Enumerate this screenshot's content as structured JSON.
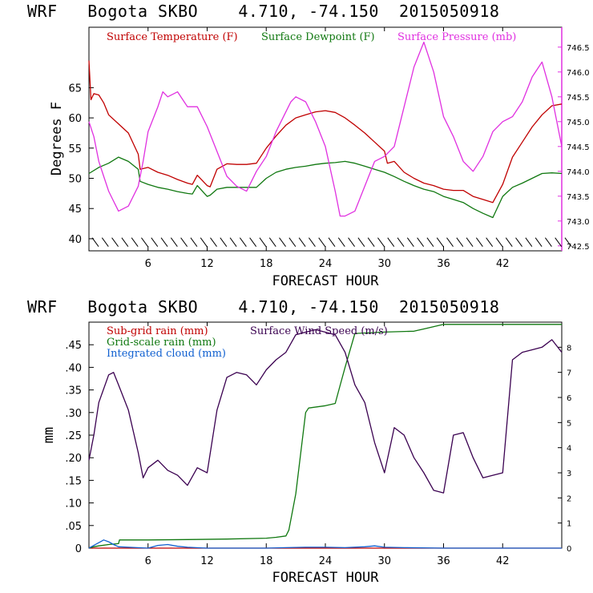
{
  "chart_data": [
    {
      "type": "line",
      "title": "WRF   Bogota SKBO    4.710, -74.150  2015050918",
      "xlabel": "FORECAST HOUR",
      "ylabel": "Degrees F",
      "xlim": [
        0,
        48
      ],
      "ylim": [
        38,
        75
      ],
      "y2lim": [
        742.4,
        746.9
      ],
      "xticks": [
        6,
        12,
        18,
        24,
        30,
        36,
        42
      ],
      "xtick_labels": [
        "6",
        "12",
        "18",
        "24",
        "30",
        "36",
        "42"
      ],
      "yticks": [
        40,
        45,
        50,
        55,
        60,
        65
      ],
      "ytick_labels": [
        "40",
        "45",
        "50",
        "55",
        "60",
        "65"
      ],
      "y2ticks": [
        742.5,
        743.0,
        743.5,
        744.0,
        744.5,
        745.0,
        745.5,
        746.0,
        746.5
      ],
      "y2tick_labels": [
        "742.5",
        "743.0",
        "743.5",
        "744.0",
        "744.5",
        "745.0",
        "745.5",
        "746.0",
        "746.5"
      ],
      "wind_barb_row_value": 39.5,
      "series": [
        {
          "name": "Surface Temperature (F)",
          "axis": "left",
          "color": "#c00000",
          "x": [
            0,
            0.2,
            0.5,
            1,
            1.5,
            2,
            3,
            4,
            5,
            5.2,
            6,
            7,
            8,
            9,
            10,
            10.5,
            11,
            12,
            12.3,
            13,
            14,
            15,
            16,
            17,
            18,
            19,
            20,
            21,
            22,
            23,
            24,
            25,
            26,
            27,
            28,
            29,
            30,
            30.3,
            31,
            32,
            33,
            34,
            35,
            36,
            37,
            38,
            39,
            40,
            41,
            42,
            43,
            44,
            45,
            46,
            47,
            48
          ],
          "values": [
            69.5,
            63,
            64,
            63.8,
            62.5,
            60.5,
            59,
            57.5,
            54,
            51.5,
            51.8,
            51,
            50.5,
            49.8,
            49.2,
            49,
            50.5,
            48.8,
            48.6,
            51.5,
            52.4,
            52.3,
            52.3,
            52.5,
            55,
            57,
            58.8,
            60,
            60.5,
            61,
            61.2,
            60.9,
            60,
            58.8,
            57.5,
            56,
            54.5,
            52.5,
            52.8,
            51,
            50,
            49.2,
            48.8,
            48.2,
            48,
            48,
            47,
            46.5,
            46,
            49,
            53.5,
            56,
            58.5,
            60.5,
            62,
            62.3
          ]
        },
        {
          "name": "Surface Dewpoint (F)",
          "axis": "left",
          "color": "#107810",
          "x": [
            0,
            1,
            2,
            3,
            4,
            5,
            5.2,
            6,
            7,
            8,
            9,
            10,
            10.5,
            11,
            12,
            12.3,
            13,
            14,
            15,
            16,
            17,
            18,
            19,
            20,
            21,
            22,
            23,
            24,
            25,
            26,
            27,
            28,
            29,
            30,
            31,
            32,
            33,
            34,
            35,
            36,
            37,
            38,
            39,
            40,
            41,
            42,
            43,
            44,
            45,
            46,
            47,
            48
          ],
          "values": [
            50.8,
            51.8,
            52.5,
            53.5,
            52.8,
            51.5,
            49.5,
            49,
            48.5,
            48.2,
            47.8,
            47.5,
            47.4,
            48.8,
            47,
            47.2,
            48.2,
            48.5,
            48.5,
            48.5,
            48.5,
            50,
            51,
            51.5,
            51.8,
            52,
            52.3,
            52.5,
            52.6,
            52.8,
            52.5,
            52,
            51.5,
            51,
            50.3,
            49.5,
            48.8,
            48.2,
            47.8,
            47,
            46.5,
            46,
            45,
            44.2,
            43.5,
            47,
            48.5,
            49.2,
            50,
            50.8,
            50.9,
            50.8
          ]
        },
        {
          "name": "Surface Pressure (mb)",
          "axis": "right",
          "color": "#e030e0",
          "x": [
            0,
            0.5,
            1,
            1.5,
            2,
            2.5,
            3,
            4,
            5,
            5.5,
            6,
            7,
            7.5,
            8,
            9,
            10,
            11,
            12,
            13,
            14,
            15,
            16,
            17,
            18,
            19,
            20,
            20.5,
            21,
            22,
            23,
            24,
            25,
            25.5,
            26,
            27,
            28,
            29,
            30,
            31,
            32,
            33,
            34,
            35,
            36,
            37,
            38,
            39,
            40,
            41,
            42,
            43,
            44,
            45,
            46,
            47,
            48
          ],
          "values": [
            745.0,
            744.7,
            744.2,
            743.9,
            743.6,
            743.4,
            743.2,
            743.3,
            743.7,
            744.2,
            744.8,
            745.3,
            745.6,
            745.5,
            745.6,
            745.3,
            745.3,
            744.9,
            744.4,
            743.9,
            743.7,
            743.6,
            744.0,
            744.3,
            744.8,
            745.2,
            745.4,
            745.5,
            745.4,
            745.0,
            744.5,
            743.6,
            743.1,
            743.1,
            743.2,
            743.7,
            744.2,
            744.3,
            744.5,
            745.3,
            746.1,
            746.6,
            746.0,
            745.1,
            744.7,
            744.2,
            744.0,
            744.3,
            744.8,
            745.0,
            745.1,
            745.4,
            745.9,
            746.2,
            745.5,
            744.5
          ]
        }
      ]
    },
    {
      "type": "line",
      "title": "WRF   Bogota SKBO    4.710, -74.150  2015050918",
      "xlabel": "FORECAST HOUR",
      "ylabel": "mm",
      "xlim": [
        0,
        48
      ],
      "ylim": [
        0,
        0.5
      ],
      "y2lim": [
        0,
        9
      ],
      "xticks": [
        6,
        12,
        18,
        24,
        30,
        36,
        42
      ],
      "xtick_labels": [
        "6",
        "12",
        "18",
        "24",
        "30",
        "36",
        "42"
      ],
      "yticks": [
        0,
        0.05,
        0.1,
        0.15,
        0.2,
        0.25,
        0.3,
        0.35,
        0.4,
        0.45
      ],
      "ytick_labels": [
        "0",
        ".05",
        ".10",
        ".15",
        ".20",
        ".25",
        ".30",
        ".35",
        ".40",
        ".45"
      ],
      "y2ticks": [
        0,
        1,
        2,
        3,
        4,
        5,
        6,
        7,
        8
      ],
      "y2tick_labels": [
        "0",
        "1",
        "2",
        "3",
        "4",
        "5",
        "6",
        "7",
        "8"
      ],
      "series": [
        {
          "name": "Sub-grid rain (mm)",
          "axis": "left",
          "color": "#c00000",
          "x": [
            0,
            48
          ],
          "values": [
            0,
            0
          ]
        },
        {
          "name": "Grid-scale rain (mm)",
          "axis": "left",
          "color": "#107810",
          "x": [
            0,
            0.5,
            1,
            2,
            3,
            3.1,
            6,
            10,
            14,
            18,
            19,
            20,
            20.3,
            21,
            22,
            22.3,
            24,
            25,
            25.5,
            26,
            27,
            30,
            33,
            34,
            35,
            36,
            40,
            44,
            48
          ],
          "values": [
            0,
            0.003,
            0.005,
            0.008,
            0.01,
            0.018,
            0.018,
            0.019,
            0.02,
            0.022,
            0.024,
            0.027,
            0.04,
            0.12,
            0.3,
            0.31,
            0.315,
            0.32,
            0.36,
            0.4,
            0.475,
            0.478,
            0.48,
            0.485,
            0.49,
            0.495,
            0.495,
            0.495,
            0.495
          ]
        },
        {
          "name": "Integrated cloud (mm)",
          "axis": "left",
          "color": "#1060d0",
          "x": [
            0,
            0.5,
            1,
            1.5,
            2,
            2.5,
            3,
            4,
            6,
            7,
            8,
            9,
            10,
            12,
            18,
            20,
            22,
            24,
            26,
            28,
            29,
            30,
            32,
            36,
            40,
            44,
            48
          ],
          "values": [
            0,
            0.006,
            0.012,
            0.018,
            0.014,
            0.008,
            0.003,
            0.002,
            0,
            0.006,
            0.008,
            0.004,
            0.002,
            0,
            0,
            0.001,
            0.002,
            0.002,
            0.001,
            0.003,
            0.005,
            0.002,
            0.001,
            0,
            0,
            0,
            0
          ]
        },
        {
          "name": "Surface Wind Speed (m/s)",
          "axis": "right",
          "color": "#3a0050",
          "x": [
            0,
            0.5,
            1,
            2,
            2.5,
            3,
            4,
            5,
            5.5,
            6,
            7,
            8,
            9,
            10,
            11,
            12,
            13,
            14,
            15,
            16,
            17,
            18,
            19,
            20,
            21,
            22,
            23,
            24,
            25,
            26,
            27,
            28,
            29,
            30,
            31,
            32,
            33,
            34,
            35,
            36,
            37,
            38,
            39,
            40,
            41,
            42,
            43,
            44,
            45,
            46,
            47,
            48
          ],
          "values": [
            3.5,
            4.5,
            5.8,
            6.9,
            7.0,
            6.5,
            5.5,
            3.8,
            2.8,
            3.2,
            3.5,
            3.1,
            2.9,
            2.5,
            3.2,
            3.0,
            5.5,
            6.8,
            7.0,
            6.9,
            6.5,
            7.1,
            7.5,
            7.8,
            8.5,
            8.6,
            8.7,
            8.6,
            8.5,
            7.8,
            6.5,
            5.8,
            4.2,
            3.0,
            4.8,
            4.5,
            3.6,
            3.0,
            2.3,
            2.2,
            4.5,
            4.6,
            3.6,
            2.8,
            2.9,
            3.0,
            7.5,
            7.8,
            7.9,
            8.0,
            8.3,
            7.8
          ]
        }
      ]
    }
  ],
  "top": {
    "title": "WRF   Bogota SKBO    4.710, -74.150  2015050918",
    "xlabel": "FORECAST HOUR",
    "ylabel": "Degrees F",
    "legend": [
      "Surface Temperature (F)",
      "Surface Dewpoint (F)",
      "Surface Pressure (mb)"
    ]
  },
  "bottom": {
    "title": "WRF   Bogota SKBO    4.710, -74.150  2015050918",
    "xlabel": "FORECAST HOUR",
    "ylabel": "mm",
    "legend": [
      "Sub-grid rain (mm)",
      "Grid-scale rain (mm)",
      "Integrated cloud (mm)",
      "Surface Wind Speed (m/s)"
    ]
  }
}
